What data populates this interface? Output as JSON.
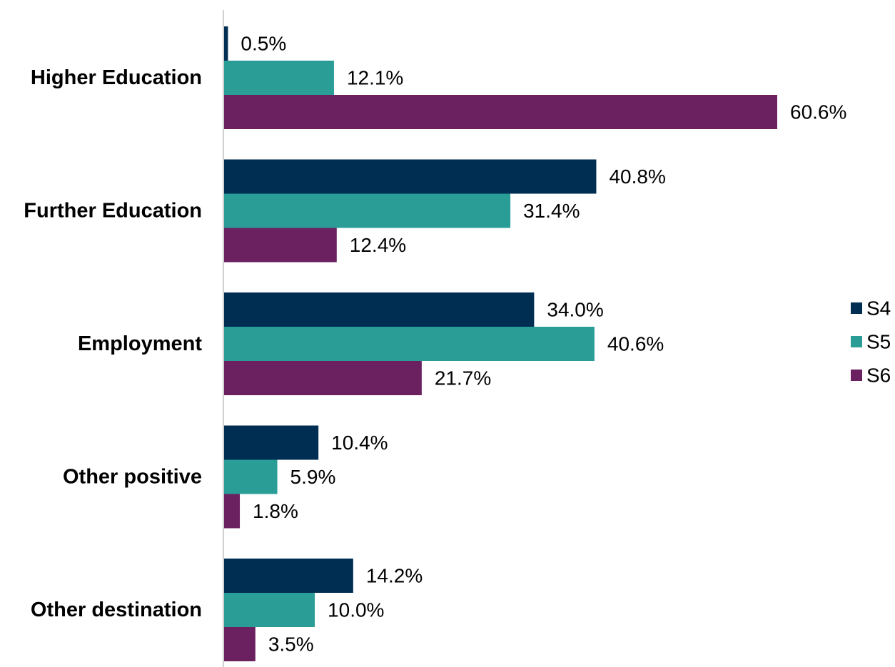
{
  "chart_data": {
    "type": "bar",
    "orientation": "horizontal",
    "categories": [
      "Higher Education",
      "Further Education",
      "Employment",
      "Other positive",
      "Other destination"
    ],
    "series": [
      {
        "name": "S4",
        "color": "#002d52",
        "values": [
          0.5,
          40.8,
          34.0,
          10.4,
          14.2
        ],
        "labels": [
          "0.5%",
          "40.8%",
          "34.0%",
          "10.4%",
          "14.2%"
        ]
      },
      {
        "name": "S5",
        "color": "#2a9d96",
        "values": [
          12.1,
          31.4,
          40.6,
          5.9,
          10.0
        ],
        "labels": [
          "12.1%",
          "31.4%",
          "40.6%",
          "5.9%",
          "10.0%"
        ]
      },
      {
        "name": "S6",
        "color": "#6b2160",
        "values": [
          60.6,
          12.4,
          21.7,
          1.8,
          3.5
        ],
        "labels": [
          "60.6%",
          "12.4%",
          "21.7%",
          "1.8%",
          "3.5%"
        ]
      }
    ],
    "xlim": [
      0,
      60.6
    ],
    "grid": false,
    "legend_position": "right"
  }
}
